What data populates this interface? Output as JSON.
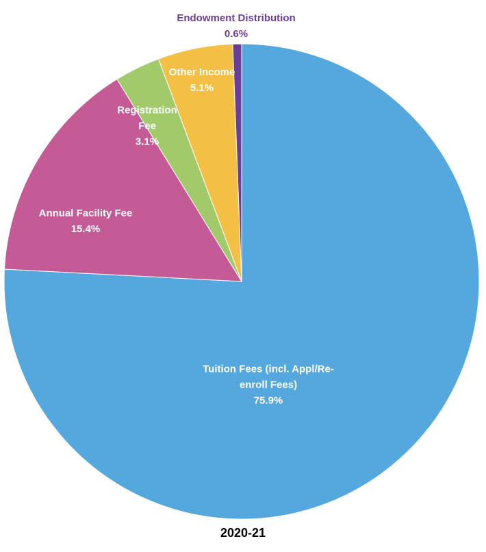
{
  "chart_data": {
    "type": "pie",
    "title": "2020-21",
    "categories": [
      "Tuition Fees  (incl. Appl/Re-enroll Fees)",
      "Annual Facility Fee",
      "Registration Fee",
      "Other Income",
      "Endowment Distribution"
    ],
    "values": [
      75.9,
      15.4,
      3.1,
      5.1,
      0.6
    ],
    "value_labels": [
      "75.9%",
      "15.4%",
      "3.1%",
      "5.1%",
      "0.6%"
    ],
    "colors": [
      "#55a8de",
      "#c45a96",
      "#a2c96a",
      "#f3c045",
      "#6a3d9a"
    ]
  }
}
